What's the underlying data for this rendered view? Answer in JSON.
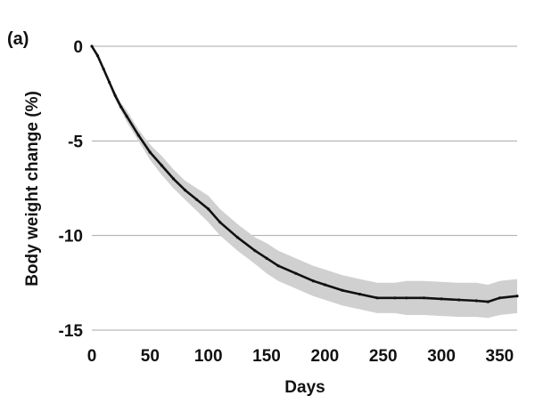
{
  "panel_label": "(a)",
  "chart_data": {
    "type": "line",
    "title": "",
    "xlabel": "Days",
    "ylabel": "Body weight change (%)",
    "xlim": [
      0,
      365
    ],
    "ylim": [
      -15,
      0
    ],
    "x_ticks": [
      0,
      50,
      100,
      150,
      200,
      250,
      300,
      350
    ],
    "y_ticks": [
      0,
      -5,
      -10,
      -15
    ],
    "x_tick_labels": [
      "0",
      "50",
      "100",
      "150",
      "200",
      "250",
      "300",
      "350"
    ],
    "y_tick_labels": [
      "0",
      "-5",
      "-10",
      "-15"
    ],
    "grid": "horizontal",
    "legend": "none",
    "series": [
      {
        "style": "mean line with shaded band",
        "color": "#111111",
        "band_color": "#d0d0d0",
        "x": [
          0,
          5,
          10,
          15,
          20,
          25,
          30,
          40,
          50,
          60,
          70,
          80,
          90,
          100,
          110,
          125,
          140,
          150,
          160,
          175,
          190,
          200,
          215,
          230,
          245,
          260,
          270,
          285,
          300,
          315,
          330,
          340,
          350,
          365
        ],
        "y": [
          0,
          -0.5,
          -1.2,
          -1.9,
          -2.6,
          -3.2,
          -3.7,
          -4.7,
          -5.6,
          -6.3,
          -7.0,
          -7.6,
          -8.1,
          -8.6,
          -9.3,
          -10.1,
          -10.8,
          -11.2,
          -11.6,
          -12.0,
          -12.4,
          -12.6,
          -12.9,
          -13.1,
          -13.3,
          -13.3,
          -13.3,
          -13.3,
          -13.35,
          -13.4,
          -13.45,
          -13.5,
          -13.3,
          -13.2
        ],
        "lower": [
          0,
          -0.5,
          -1.3,
          -2.0,
          -2.8,
          -3.4,
          -4.0,
          -5.0,
          -6.0,
          -6.8,
          -7.5,
          -8.1,
          -8.7,
          -9.3,
          -10.0,
          -10.8,
          -11.5,
          -12.0,
          -12.4,
          -12.8,
          -13.2,
          -13.4,
          -13.7,
          -13.9,
          -14.1,
          -14.1,
          -14.2,
          -14.2,
          -14.25,
          -14.3,
          -14.3,
          -14.35,
          -14.2,
          -14.1
        ],
        "upper": [
          0,
          -0.5,
          -1.1,
          -1.8,
          -2.4,
          -3.0,
          -3.4,
          -4.4,
          -5.2,
          -5.8,
          -6.5,
          -7.1,
          -7.5,
          -7.9,
          -8.6,
          -9.4,
          -10.1,
          -10.4,
          -10.8,
          -11.2,
          -11.6,
          -11.8,
          -12.1,
          -12.3,
          -12.5,
          -12.5,
          -12.4,
          -12.4,
          -12.45,
          -12.5,
          -12.5,
          -12.6,
          -12.4,
          -12.3
        ]
      }
    ]
  }
}
